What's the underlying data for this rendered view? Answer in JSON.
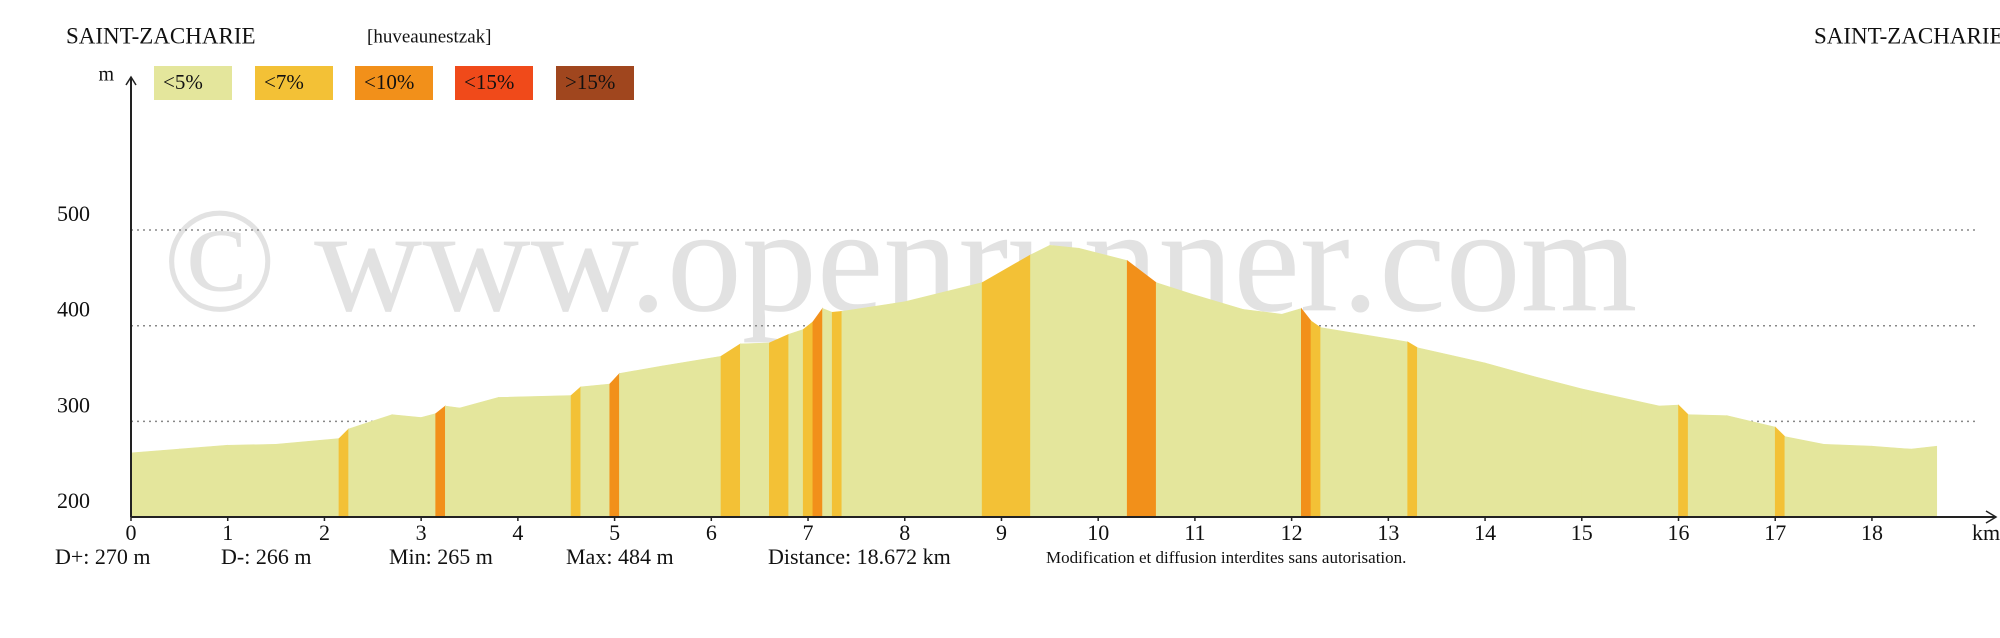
{
  "chart_data": {
    "type": "area",
    "title": "SAINT-ZACHARIE",
    "subtitle": "[huveaunestzak]",
    "end_title": "SAINT-ZACHARIE",
    "y_label": "m",
    "x_label": "km",
    "watermark": "© www.openrunner.com",
    "legend": [
      {
        "label": "<5%",
        "color": "#e4e69c"
      },
      {
        "label": "<7%",
        "color": "#f3c136"
      },
      {
        "label": "<10%",
        "color": "#f2901a"
      },
      {
        "label": "<15%",
        "color": "#f04a1a"
      },
      {
        "label": ">15%",
        "color": "#a0461e"
      }
    ],
    "x": [
      0,
      0.5,
      1,
      1.5,
      2.15,
      2.25,
      2.7,
      3.0,
      3.15,
      3.25,
      3.4,
      3.8,
      4.55,
      4.65,
      4.95,
      5.05,
      5.5,
      6.1,
      6.3,
      6.6,
      6.8,
      6.95,
      7.05,
      7.15,
      7.25,
      7.35,
      8.0,
      8.8,
      9.3,
      9.5,
      9.8,
      10.3,
      10.6,
      11.0,
      11.5,
      11.9,
      12.1,
      12.2,
      12.3,
      13.2,
      13.3,
      14.0,
      14.5,
      15.0,
      15.8,
      16.0,
      16.1,
      16.5,
      17.0,
      17.1,
      17.5,
      18.0,
      18.4,
      18.67
    ],
    "values": [
      267,
      271,
      275,
      276,
      282,
      292,
      307,
      304,
      308,
      316,
      314,
      325,
      327,
      336,
      339,
      350,
      358,
      368,
      381,
      382,
      391,
      396,
      404,
      418,
      414,
      415,
      425,
      445,
      474,
      484,
      481,
      468,
      445,
      432,
      417,
      412,
      418,
      405,
      398,
      383,
      377,
      361,
      347,
      334,
      316,
      317,
      307,
      306,
      294,
      284,
      276,
      274,
      271,
      274
    ],
    "segment_class": [
      0,
      0,
      0,
      0,
      1,
      0,
      0,
      0,
      2,
      0,
      0,
      0,
      1,
      0,
      2,
      0,
      0,
      1,
      0,
      1,
      0,
      1,
      2,
      0,
      1,
      0,
      0,
      1,
      0,
      0,
      0,
      2,
      0,
      0,
      0,
      0,
      2,
      1,
      0,
      1,
      0,
      0,
      0,
      0,
      0,
      1,
      0,
      0,
      1,
      0,
      0,
      0,
      0,
      null
    ],
    "xlim": [
      0,
      19.2
    ],
    "ylim": [
      200,
      660
    ],
    "xticks": [
      0,
      1,
      2,
      3,
      4,
      5,
      6,
      7,
      8,
      9,
      10,
      11,
      12,
      13,
      14,
      15,
      16,
      17,
      18
    ],
    "yticks": [
      200,
      300,
      400,
      500
    ],
    "grid": true,
    "annotations": [
      "D+: 270 m",
      "D-: 266 m",
      "Min: 265 m",
      "Max: 484 m",
      "Distance: 18.672 km",
      "Modification et diffusion interdites sans autorisation."
    ]
  }
}
